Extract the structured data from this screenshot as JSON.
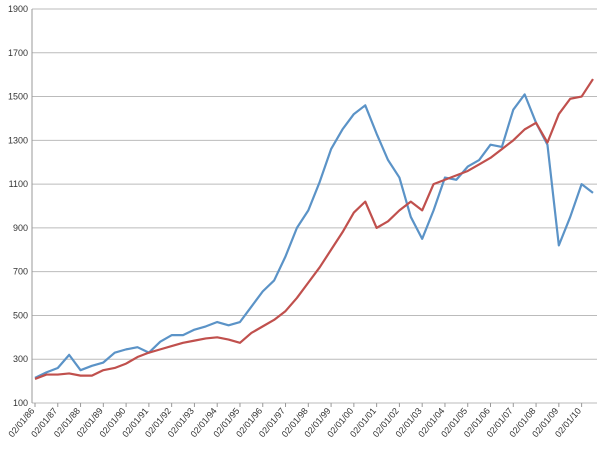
{
  "chart_data": {
    "type": "line",
    "categories": [
      "02/01/86",
      null,
      "02/01/87",
      null,
      "02/01/88",
      null,
      "02/01/89",
      null,
      "02/01/90",
      null,
      "02/01/91",
      null,
      "02/01/92",
      null,
      "02/01/93",
      null,
      "02/01/94",
      null,
      "02/01/95",
      null,
      "02/01/96",
      null,
      "02/01/97",
      null,
      "02/01/98",
      null,
      "02/01/99",
      null,
      "02/01/00",
      null,
      "02/01/01",
      null,
      "02/01/02",
      null,
      "02/01/03",
      null,
      "02/01/04",
      null,
      "02/01/05",
      null,
      "02/01/06",
      null,
      "02/01/07",
      null,
      "02/01/08",
      null,
      "02/01/09",
      null,
      "02/01/10",
      null
    ],
    "series": [
      {
        "color": "#5b93c7",
        "values": [
          215,
          240,
          260,
          320,
          250,
          270,
          285,
          330,
          345,
          355,
          330,
          380,
          410,
          410,
          435,
          450,
          470,
          455,
          470,
          540,
          610,
          660,
          770,
          900,
          980,
          1110,
          1260,
          1350,
          1420,
          1460,
          1330,
          1210,
          1130,
          950,
          850,
          980,
          1130,
          1120,
          1180,
          1210,
          1280,
          1270,
          1440,
          1510,
          1380,
          1280,
          820,
          950,
          1100,
          1060
        ]
      },
      {
        "color": "#c0504d",
        "values": [
          210,
          230,
          230,
          235,
          225,
          225,
          250,
          260,
          280,
          310,
          330,
          345,
          360,
          375,
          385,
          395,
          400,
          390,
          375,
          420,
          450,
          480,
          520,
          580,
          650,
          720,
          800,
          880,
          970,
          1020,
          900,
          930,
          980,
          1020,
          980,
          1100,
          1120,
          1140,
          1160,
          1190,
          1220,
          1260,
          1300,
          1350,
          1380,
          1290,
          1420,
          1490,
          1500,
          1580
        ]
      }
    ],
    "ylim": [
      100,
      1900
    ],
    "yticks": [
      100,
      300,
      500,
      700,
      900,
      1100,
      1300,
      1500,
      1700,
      1900
    ],
    "grid": true
  }
}
